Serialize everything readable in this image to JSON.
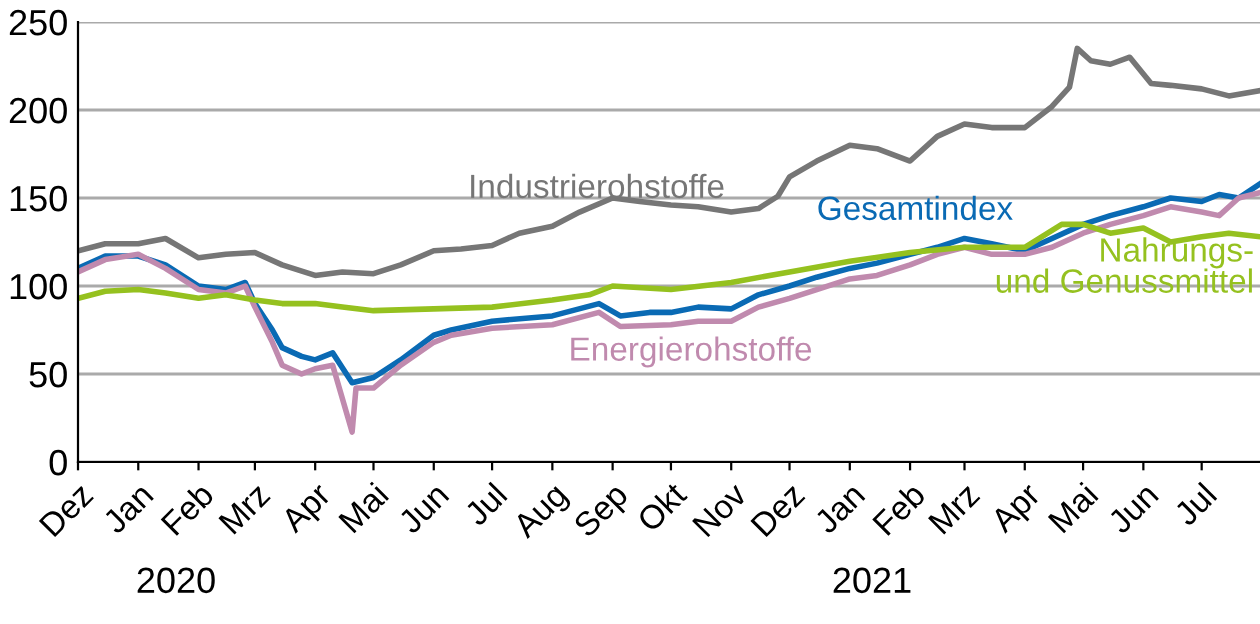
{
  "chart_data": {
    "type": "line",
    "xlim": [
      "2019-12-01",
      "2021-07-31"
    ],
    "ylim": [
      0,
      250
    ],
    "yticks": [
      0,
      50,
      100,
      150,
      200,
      250
    ],
    "grid": "y",
    "legend": false,
    "line_style": "solid",
    "marker": "none",
    "xticks": [
      {
        "value": "2019-12-01",
        "label": "Dez"
      },
      {
        "value": "2020-01-01",
        "label": "Jan"
      },
      {
        "value": "2020-02-01",
        "label": "Feb"
      },
      {
        "value": "2020-03-01",
        "label": "Mrz"
      },
      {
        "value": "2020-04-01",
        "label": "Apr"
      },
      {
        "value": "2020-05-01",
        "label": "Mai"
      },
      {
        "value": "2020-06-01",
        "label": "Jun"
      },
      {
        "value": "2020-07-01",
        "label": "Jul"
      },
      {
        "value": "2020-08-01",
        "label": "Aug"
      },
      {
        "value": "2020-09-01",
        "label": "Sep"
      },
      {
        "value": "2020-10-01",
        "label": "Okt"
      },
      {
        "value": "2020-11-01",
        "label": "Nov"
      },
      {
        "value": "2020-12-01",
        "label": "Dez"
      },
      {
        "value": "2021-01-01",
        "label": "Jan"
      },
      {
        "value": "2021-02-01",
        "label": "Feb"
      },
      {
        "value": "2021-03-01",
        "label": "Mrz"
      },
      {
        "value": "2021-04-01",
        "label": "Apr"
      },
      {
        "value": "2021-05-01",
        "label": "Mai"
      },
      {
        "value": "2021-06-01",
        "label": "Jun"
      },
      {
        "value": "2021-07-01",
        "label": "Jul"
      }
    ],
    "annotations": [
      "2020",
      "2021"
    ],
    "series": [
      {
        "name": "Industrierohstoffe",
        "color": "#767676",
        "x": [
          "2019-12-01",
          "2019-12-15",
          "2020-01-01",
          "2020-01-15",
          "2020-02-01",
          "2020-02-15",
          "2020-03-01",
          "2020-03-15",
          "2020-04-01",
          "2020-04-15",
          "2020-05-01",
          "2020-05-15",
          "2020-06-01",
          "2020-06-15",
          "2020-07-01",
          "2020-07-15",
          "2020-08-01",
          "2020-08-15",
          "2020-09-01",
          "2020-09-15",
          "2020-10-01",
          "2020-10-15",
          "2020-11-01",
          "2020-11-15",
          "2020-11-25",
          "2020-12-01",
          "2020-12-15",
          "2021-01-01",
          "2021-01-15",
          "2021-02-01",
          "2021-02-15",
          "2021-03-01",
          "2021-03-15",
          "2021-04-01",
          "2021-04-15",
          "2021-04-24",
          "2021-04-28",
          "2021-05-05",
          "2021-05-15",
          "2021-05-25",
          "2021-06-05",
          "2021-06-15",
          "2021-07-01",
          "2021-07-15",
          "2021-07-31"
        ],
        "values": [
          120,
          124,
          124,
          127,
          116,
          118,
          119,
          112,
          106,
          108,
          107,
          112,
          120,
          121,
          123,
          130,
          134,
          142,
          150,
          148,
          146,
          145,
          142,
          144,
          151,
          162,
          171,
          180,
          178,
          171,
          185,
          192,
          190,
          190,
          202,
          213,
          235,
          228,
          226,
          230,
          215,
          214,
          212,
          208,
          211
        ]
      },
      {
        "name": "Gesamtindex",
        "color": "#0a6ab4",
        "x": [
          "2019-12-01",
          "2019-12-15",
          "2020-01-01",
          "2020-01-15",
          "2020-02-01",
          "2020-02-15",
          "2020-02-25",
          "2020-03-01",
          "2020-03-10",
          "2020-03-15",
          "2020-03-25",
          "2020-04-01",
          "2020-04-10",
          "2020-04-20",
          "2020-05-01",
          "2020-05-15",
          "2020-06-01",
          "2020-06-10",
          "2020-07-01",
          "2020-08-01",
          "2020-08-25",
          "2020-09-05",
          "2020-09-20",
          "2020-10-01",
          "2020-10-15",
          "2020-11-01",
          "2020-11-15",
          "2020-12-01",
          "2020-12-15",
          "2021-01-01",
          "2021-01-15",
          "2021-02-01",
          "2021-02-15",
          "2021-03-01",
          "2021-03-15",
          "2021-04-01",
          "2021-04-15",
          "2021-05-01",
          "2021-05-15",
          "2021-06-01",
          "2021-06-15",
          "2021-07-01",
          "2021-07-10",
          "2021-07-20",
          "2021-07-31"
        ],
        "values": [
          110,
          117,
          117,
          112,
          100,
          98,
          102,
          90,
          75,
          65,
          60,
          58,
          62,
          45,
          48,
          58,
          72,
          75,
          80,
          83,
          90,
          83,
          85,
          85,
          88,
          87,
          95,
          100,
          105,
          110,
          113,
          118,
          122,
          127,
          124,
          120,
          127,
          135,
          140,
          145,
          150,
          148,
          152,
          150,
          158
        ]
      },
      {
        "name": "Energierohstoffe",
        "color": "#c08aae",
        "x": [
          "2019-12-01",
          "2019-12-15",
          "2020-01-01",
          "2020-01-15",
          "2020-02-01",
          "2020-02-15",
          "2020-02-25",
          "2020-03-01",
          "2020-03-10",
          "2020-03-15",
          "2020-03-25",
          "2020-04-01",
          "2020-04-10",
          "2020-04-20",
          "2020-04-22",
          "2020-05-01",
          "2020-05-15",
          "2020-06-01",
          "2020-06-10",
          "2020-07-01",
          "2020-08-01",
          "2020-08-25",
          "2020-09-05",
          "2020-10-01",
          "2020-10-15",
          "2020-11-01",
          "2020-11-15",
          "2020-12-01",
          "2020-12-15",
          "2021-01-01",
          "2021-01-15",
          "2021-02-01",
          "2021-02-15",
          "2021-03-01",
          "2021-03-15",
          "2021-04-01",
          "2021-04-15",
          "2021-05-01",
          "2021-05-15",
          "2021-06-01",
          "2021-06-15",
          "2021-07-01",
          "2021-07-10",
          "2021-07-20",
          "2021-07-31"
        ],
        "values": [
          108,
          115,
          118,
          110,
          98,
          96,
          100,
          88,
          68,
          55,
          50,
          53,
          55,
          17,
          42,
          42,
          55,
          68,
          72,
          76,
          78,
          85,
          77,
          78,
          80,
          80,
          88,
          93,
          98,
          104,
          106,
          112,
          118,
          122,
          118,
          118,
          122,
          130,
          135,
          140,
          145,
          142,
          140,
          150,
          153
        ]
      },
      {
        "name": "Nahrungs- und Genussmittel",
        "color": "#95c11f",
        "x": [
          "2019-12-01",
          "2019-12-15",
          "2020-01-01",
          "2020-01-15",
          "2020-02-01",
          "2020-02-15",
          "2020-03-01",
          "2020-03-15",
          "2020-04-01",
          "2020-04-15",
          "2020-05-01",
          "2020-06-01",
          "2020-07-01",
          "2020-08-01",
          "2020-08-20",
          "2020-09-01",
          "2020-10-01",
          "2020-11-01",
          "2020-12-01",
          "2021-01-01",
          "2021-02-01",
          "2021-03-01",
          "2021-04-01",
          "2021-04-20",
          "2021-05-01",
          "2021-05-15",
          "2021-06-01",
          "2021-06-15",
          "2021-07-01",
          "2021-07-15",
          "2021-07-31"
        ],
        "values": [
          93,
          97,
          98,
          96,
          93,
          95,
          92,
          90,
          90,
          88,
          86,
          87,
          88,
          92,
          95,
          100,
          98,
          102,
          108,
          114,
          119,
          122,
          122,
          135,
          135,
          130,
          133,
          125,
          128,
          130,
          128
        ]
      }
    ]
  }
}
